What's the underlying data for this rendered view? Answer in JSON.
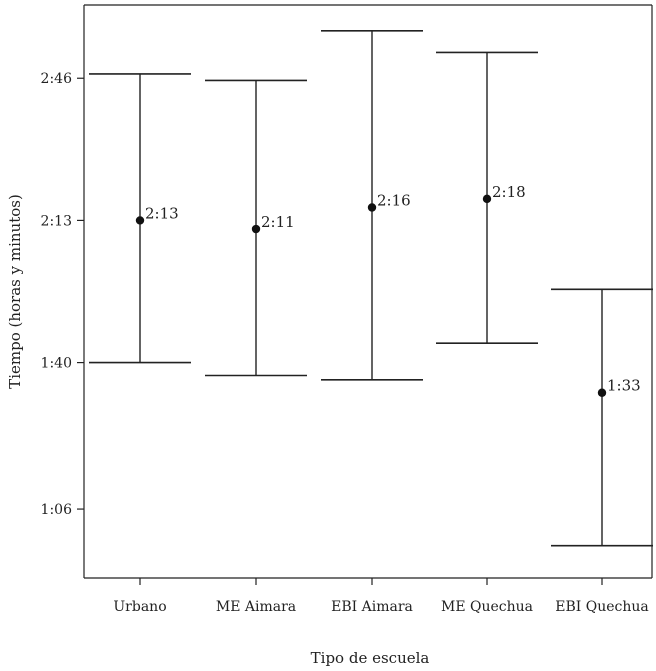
{
  "chart_data": {
    "type": "errorbar",
    "title": "",
    "xlabel": "Tipo de escuela",
    "ylabel": "Tiempo (horas y minutos)",
    "y_unit": "minutes",
    "ylim": [
      50,
      183
    ],
    "yticks": [
      {
        "value": 66,
        "label": "1:06"
      },
      {
        "value": 100,
        "label": "1:40"
      },
      {
        "value": 133,
        "label": "2:13"
      },
      {
        "value": 166,
        "label": "2:46"
      }
    ],
    "categories": [
      "Urbano",
      "ME Aimara",
      "EBI Aimara",
      "ME Quechua",
      "EBI Quechua"
    ],
    "points": [
      {
        "category": "Urbano",
        "mean": 133,
        "label": "2:13",
        "lower": 100,
        "upper": 167
      },
      {
        "category": "ME Aimara",
        "mean": 131,
        "label": "2:11",
        "lower": 97,
        "upper": 165.5
      },
      {
        "category": "EBI Aimara",
        "mean": 136,
        "label": "2:16",
        "lower": 96,
        "upper": 177
      },
      {
        "category": "ME Quechua",
        "mean": 138,
        "label": "2:18",
        "lower": 104.5,
        "upper": 172
      },
      {
        "category": "EBI Quechua",
        "mean": 93,
        "label": "1:33",
        "lower": 57.5,
        "upper": 117
      }
    ],
    "grid": false,
    "legend": "none"
  }
}
